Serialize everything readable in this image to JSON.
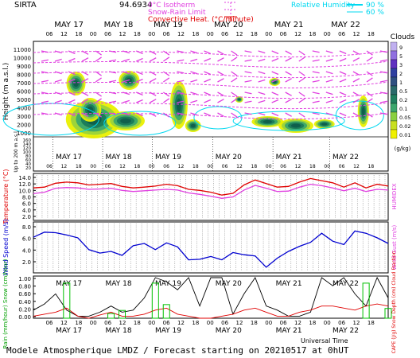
{
  "header": {
    "site": "SIRTA",
    "coord": "94.6934",
    "legend_left": [
      {
        "label": "0°C Isotherm",
        "color": "#e040e0"
      },
      {
        "label": "Snow-Rain Limit",
        "color": "#e040e0"
      },
      {
        "label": "Convective Heat. (°C/minute)",
        "color": "#e00000"
      }
    ],
    "legend_right": [
      {
        "label": "Relative Humidity",
        "value": "90 %",
        "color": "#00d8f0"
      },
      {
        "label": "",
        "value": "60 %",
        "color": "#00d8f0"
      }
    ]
  },
  "footer": {
    "title": "Modele Atmospherique LMDZ / Forecast starting on 20210517 at 0hUT",
    "xlabel": "Universal Time"
  },
  "days": [
    "MAY 17",
    "MAY 18",
    "MAY 19",
    "MAY 20",
    "MAY 21",
    "MAY 22"
  ],
  "hour_ticks": [
    "06",
    "12",
    "18",
    "00",
    "06",
    "12",
    "18",
    "00",
    "06",
    "12",
    "18",
    "00",
    "06",
    "12",
    "18",
    "00",
    "06",
    "12",
    "18",
    "00",
    "06",
    "12",
    "18"
  ],
  "chart_data": [
    {
      "type": "heatmap",
      "title": "Clouds",
      "ylabel": "Height (m a.s.l.)",
      "ylabel2": "Up to 200 m a.s.l.",
      "yticks": [
        "11000",
        "10000",
        "9000",
        "8000",
        "7000",
        "6000",
        "5000",
        "4000",
        "3000",
        "2000",
        "1000",
        "160",
        "140",
        "120",
        "100",
        "80",
        "60",
        "40",
        "20"
      ],
      "colorbar": {
        "title": "Clouds",
        "unit": "(g/kg)",
        "ticks": [
          "9",
          "5",
          "3",
          "2",
          "1",
          "0.5",
          "0.2",
          "0.1",
          "0.05",
          "0.02",
          "0.01"
        ]
      }
    },
    {
      "type": "line",
      "ylabel": "Temperature (°C)",
      "ylabel2": "HUMIDEX",
      "yticks": [
        "14.0",
        "12.0",
        "10.0",
        "8.0",
        "6.0",
        "4.0",
        "2.0"
      ],
      "ylim": [
        2.0,
        15.0
      ],
      "series": [
        {
          "name": "Temperature",
          "color": "#e00000",
          "values": [
            11.0,
            11.2,
            12.3,
            12.6,
            12.4,
            11.8,
            12.0,
            12.2,
            11.4,
            11.0,
            11.2,
            11.5,
            12.0,
            11.6,
            10.6,
            10.3,
            9.8,
            9.0,
            9.5,
            11.8,
            13.2,
            12.2,
            11.2,
            11.4,
            12.6,
            13.6,
            13.0,
            12.4,
            11.2,
            12.4,
            11.0,
            12.0,
            11.5
          ]
        },
        {
          "name": "HUMIDEX",
          "color": "#e040e0",
          "values": [
            9.4,
            9.8,
            10.9,
            11.1,
            11.0,
            10.6,
            10.7,
            10.9,
            10.3,
            10.0,
            10.2,
            10.4,
            10.6,
            10.4,
            9.6,
            9.2,
            8.7,
            8.1,
            8.5,
            10.4,
            11.7,
            10.9,
            10.0,
            10.1,
            11.2,
            12.0,
            11.6,
            11.0,
            10.2,
            10.9,
            10.0,
            10.6,
            10.4
          ]
        }
      ]
    },
    {
      "type": "line",
      "ylabel": "Wind Speed (m/s)",
      "ylabel2": "Wind Gust (m/s)",
      "yticks": [
        "8.0",
        "6.0",
        "4.0",
        "2.0"
      ],
      "ylim": [
        0.0,
        9.0
      ],
      "series": [
        {
          "name": "Wind Speed",
          "color": "#0000d0",
          "values": [
            6.3,
            7.2,
            7.1,
            6.7,
            6.2,
            4.1,
            3.5,
            3.8,
            3.1,
            4.8,
            5.2,
            4.1,
            5.3,
            4.6,
            2.3,
            2.4,
            2.9,
            2.3,
            3.6,
            3.2,
            3.0,
            1.0,
            2.6,
            3.8,
            4.7,
            5.4,
            7.0,
            5.6,
            5.0,
            7.4,
            7.0,
            6.2,
            5.2
          ]
        }
      ]
    },
    {
      "type": "line",
      "ylabel": "Rain (mm/hour) Snow (cm/hour)",
      "ylabel2": "CAPE (J/g) Snow Depth (cm) Cloud Fraction",
      "yticks": [
        "1.00",
        "0.80",
        "0.60",
        "0.40",
        "0.20",
        "0.00"
      ],
      "ylim": [
        0.0,
        1.0
      ],
      "series": [
        {
          "name": "Cloud Fraction",
          "color": "#000000",
          "values": [
            0.2,
            0.35,
            0.6,
            0.2,
            0.05,
            0.05,
            0.15,
            0.3,
            0.15,
            0.2,
            0.5,
            1.0,
            0.9,
            0.7,
            1.0,
            0.3,
            1.0,
            1.0,
            0.1,
            0.6,
            1.0,
            0.3,
            0.2,
            0.05,
            0.05,
            0.15,
            1.0,
            0.8,
            1.0,
            0.6,
            0.3,
            1.0,
            0.5
          ]
        },
        {
          "name": "CAPE",
          "color": "#e00000",
          "values": [
            0.05,
            0.1,
            0.15,
            0.25,
            0.05,
            0.0,
            0.08,
            0.15,
            0.05,
            0.05,
            0.1,
            0.2,
            0.25,
            0.1,
            0.05,
            0.0,
            0.0,
            0.05,
            0.1,
            0.2,
            0.25,
            0.15,
            0.05,
            0.05,
            0.15,
            0.2,
            0.3,
            0.3,
            0.25,
            0.2,
            0.3,
            0.35,
            0.3
          ]
        },
        {
          "name": "Rain",
          "color": "#00c000",
          "values": [
            0.0,
            0.0,
            0.0,
            0.9,
            0.0,
            0.0,
            0.0,
            0.12,
            0.2,
            0.0,
            0.0,
            0.9,
            0.35,
            0.0,
            0.0,
            0.0,
            0.0,
            0.0,
            0.0,
            0.0,
            0.0,
            0.0,
            0.0,
            0.0,
            0.0,
            0.0,
            0.0,
            0.0,
            0.0,
            0.0,
            0.9,
            0.0,
            0.25
          ]
        }
      ]
    }
  ]
}
